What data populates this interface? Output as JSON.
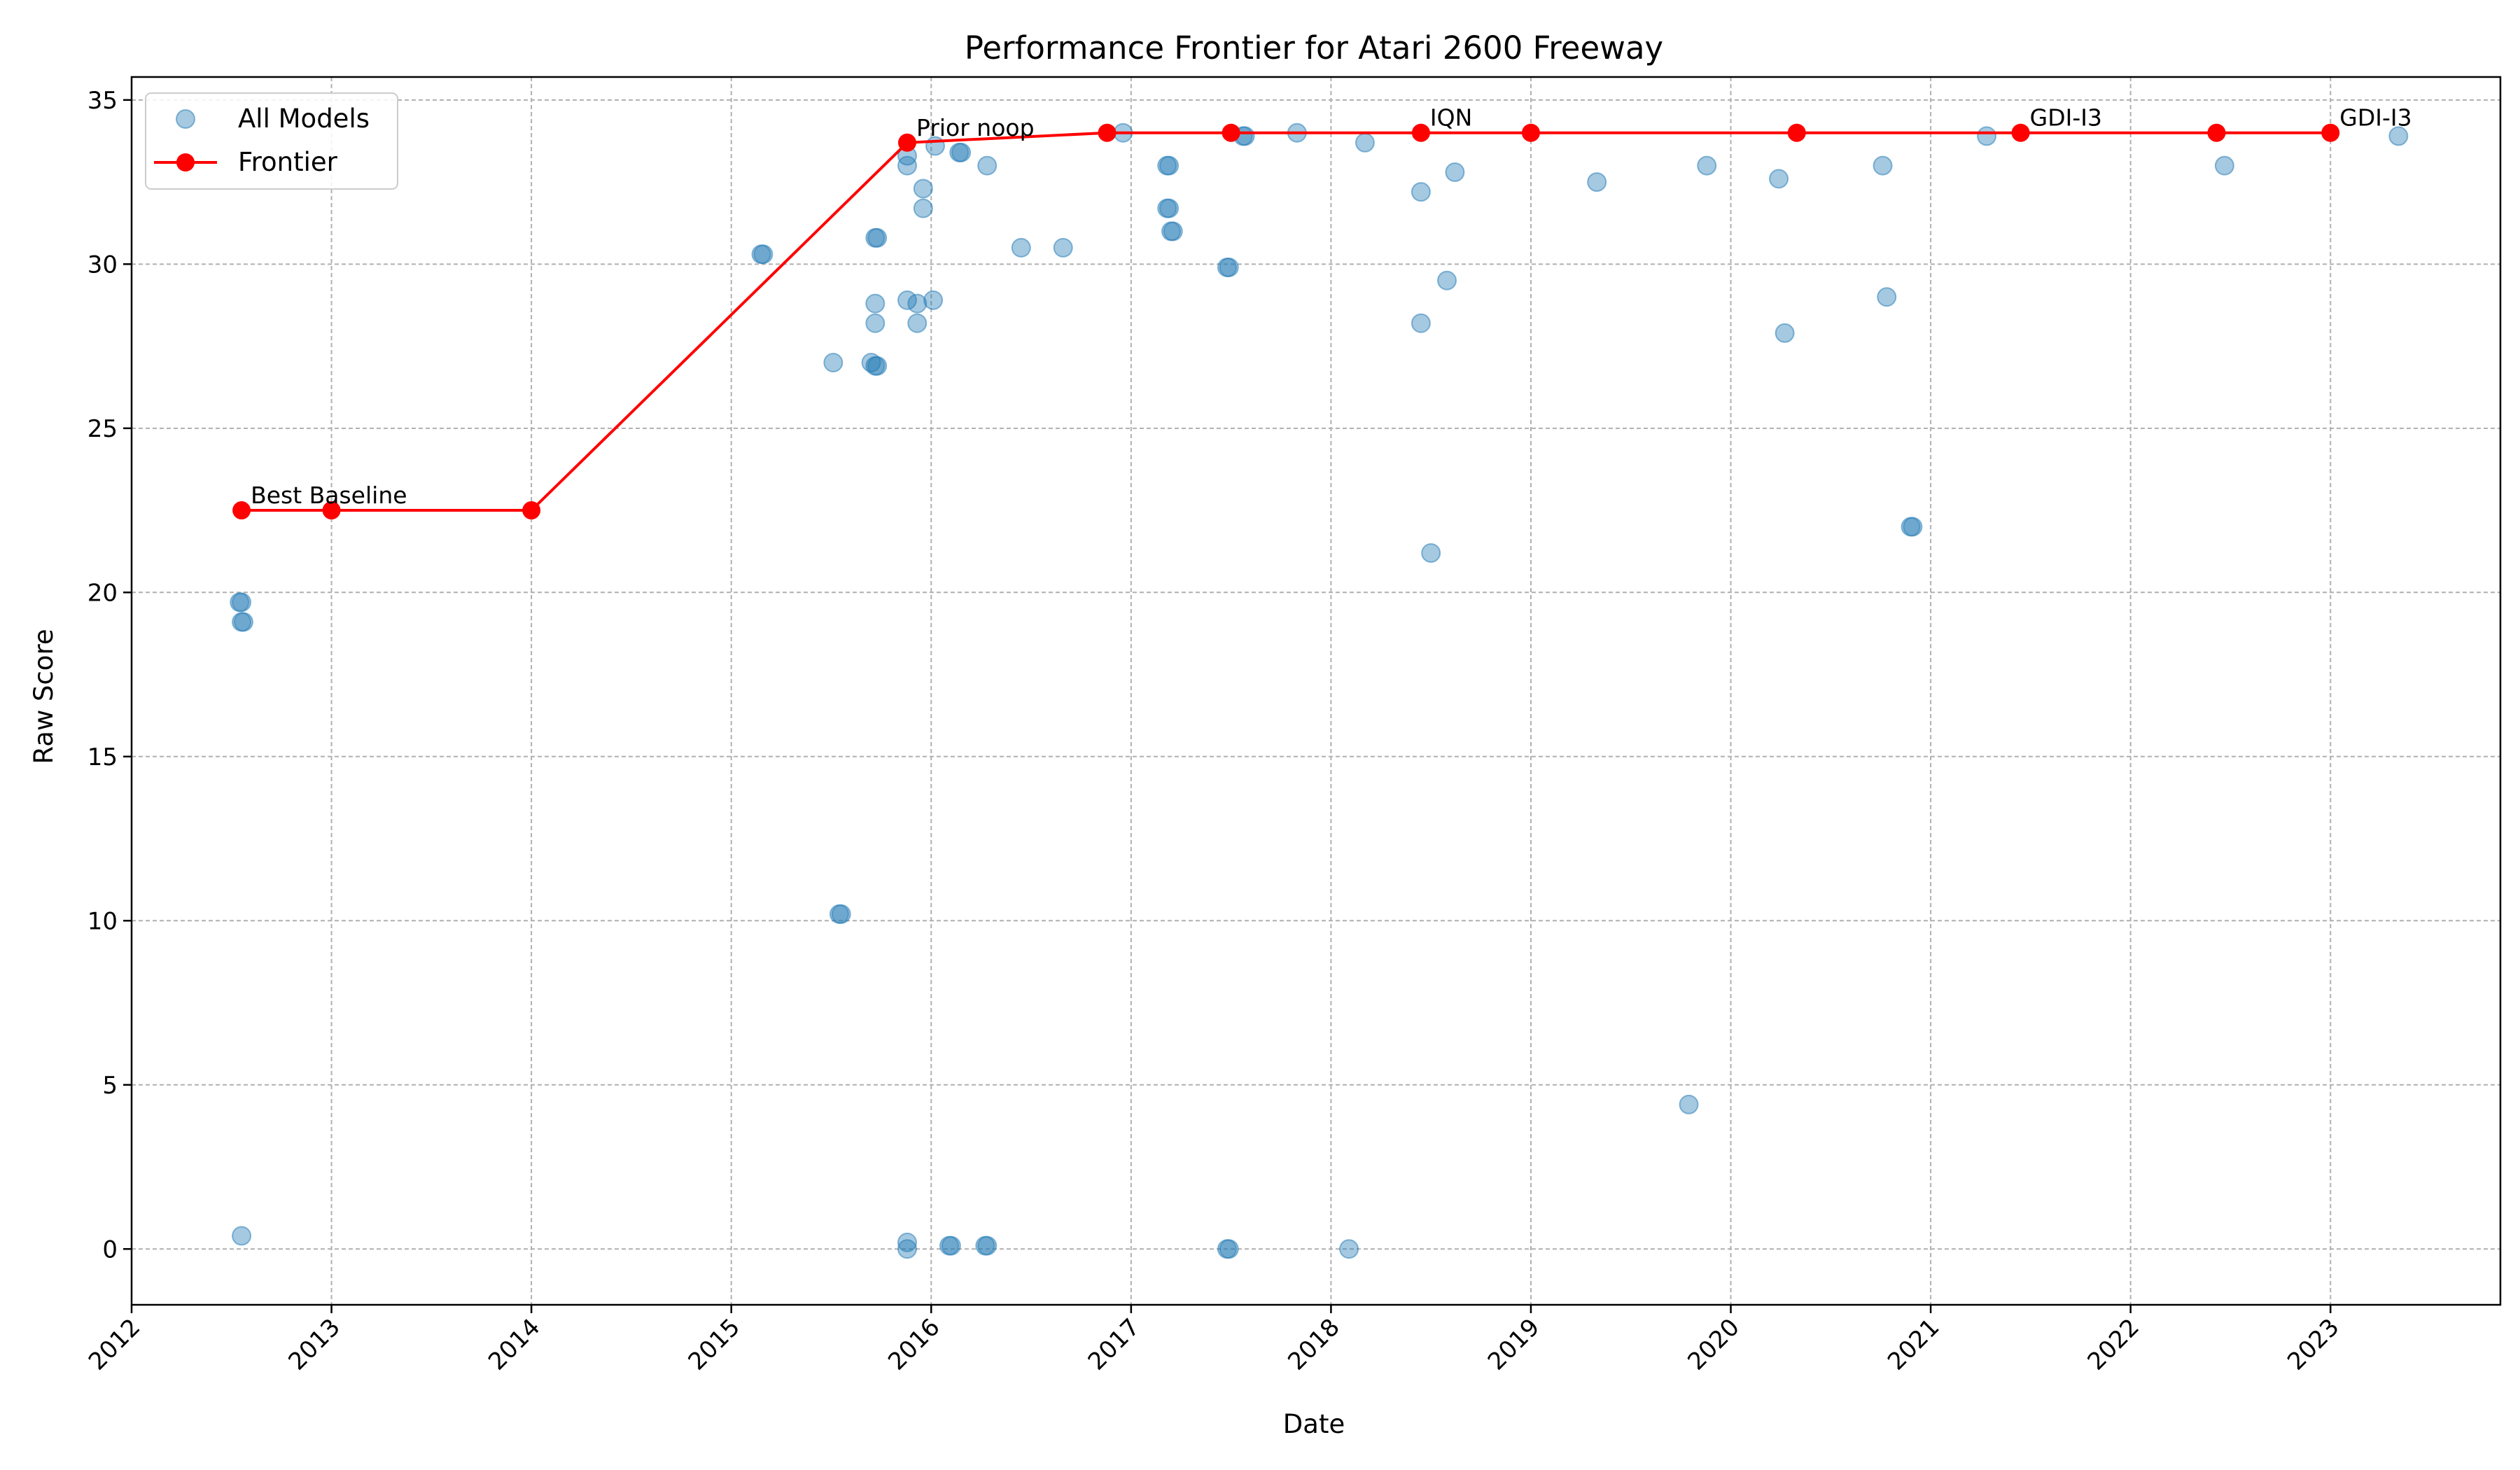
{
  "chart_data": {
    "type": "scatter",
    "title": "Performance Frontier for Atari 2600 Freeway",
    "xlabel": "Date",
    "ylabel": "Raw Score",
    "xlim": [
      2012.0,
      2023.85
    ],
    "ylim": [
      -1.7,
      35.7
    ],
    "x_ticks": [
      2012,
      2013,
      2014,
      2015,
      2016,
      2017,
      2018,
      2019,
      2020,
      2021,
      2022,
      2023
    ],
    "x_tick_labels": [
      "2012",
      "2013",
      "2014",
      "2015",
      "2016",
      "2017",
      "2018",
      "2019",
      "2020",
      "2021",
      "2022",
      "2023"
    ],
    "y_ticks": [
      0,
      5,
      10,
      15,
      20,
      25,
      30,
      35
    ],
    "y_tick_labels": [
      "0",
      "5",
      "10",
      "15",
      "20",
      "25",
      "30",
      "35"
    ],
    "grid": true,
    "legend_position": "top-left",
    "colors": {
      "scatter": "#1f77b4",
      "frontier": "#ff0000",
      "grid": "#b0b0b0"
    },
    "series": [
      {
        "name": "All Models",
        "kind": "scatter",
        "points": [
          [
            2012.54,
            19.7
          ],
          [
            2012.55,
            19.7
          ],
          [
            2012.55,
            19.1
          ],
          [
            2012.56,
            19.1
          ],
          [
            2012.55,
            0.4
          ],
          [
            2015.15,
            30.3
          ],
          [
            2015.16,
            30.3
          ],
          [
            2015.51,
            27.0
          ],
          [
            2015.54,
            10.2
          ],
          [
            2015.55,
            10.2
          ],
          [
            2015.7,
            27.0
          ],
          [
            2015.72,
            26.9
          ],
          [
            2015.73,
            26.9
          ],
          [
            2015.72,
            30.8
          ],
          [
            2015.73,
            30.8
          ],
          [
            2015.72,
            28.8
          ],
          [
            2015.72,
            28.2
          ],
          [
            2015.88,
            33.3
          ],
          [
            2015.88,
            33.0
          ],
          [
            2015.88,
            28.9
          ],
          [
            2015.88,
            0.2
          ],
          [
            2015.88,
            0.0
          ],
          [
            2015.93,
            28.8
          ],
          [
            2015.93,
            28.2
          ],
          [
            2015.96,
            32.3
          ],
          [
            2015.96,
            31.7
          ],
          [
            2016.01,
            28.9
          ],
          [
            2016.02,
            33.6
          ],
          [
            2016.09,
            0.1
          ],
          [
            2016.1,
            0.1
          ],
          [
            2016.14,
            33.4
          ],
          [
            2016.15,
            33.4
          ],
          [
            2016.27,
            0.1
          ],
          [
            2016.28,
            0.1
          ],
          [
            2016.28,
            33.0
          ],
          [
            2016.45,
            30.5
          ],
          [
            2016.66,
            30.5
          ],
          [
            2016.96,
            34.0
          ],
          [
            2017.18,
            31.7
          ],
          [
            2017.19,
            31.7
          ],
          [
            2017.18,
            33.0
          ],
          [
            2017.19,
            33.0
          ],
          [
            2017.2,
            31.0
          ],
          [
            2017.21,
            31.0
          ],
          [
            2017.48,
            29.9
          ],
          [
            2017.49,
            29.9
          ],
          [
            2017.48,
            0.0
          ],
          [
            2017.49,
            0.0
          ],
          [
            2017.56,
            33.9
          ],
          [
            2017.57,
            33.9
          ],
          [
            2017.83,
            34.0
          ],
          [
            2018.09,
            0.0
          ],
          [
            2018.17,
            33.7
          ],
          [
            2018.45,
            32.2
          ],
          [
            2018.45,
            28.2
          ],
          [
            2018.5,
            21.2
          ],
          [
            2018.58,
            29.5
          ],
          [
            2018.62,
            32.8
          ],
          [
            2019.33,
            32.5
          ],
          [
            2019.79,
            4.4
          ],
          [
            2019.88,
            33.0
          ],
          [
            2020.24,
            32.6
          ],
          [
            2020.27,
            27.9
          ],
          [
            2020.76,
            33.0
          ],
          [
            2020.78,
            29.0
          ],
          [
            2020.9,
            22.0
          ],
          [
            2020.91,
            22.0
          ],
          [
            2021.28,
            33.9
          ],
          [
            2022.47,
            33.0
          ],
          [
            2023.34,
            33.9
          ]
        ]
      },
      {
        "name": "Frontier",
        "kind": "line",
        "points": [
          [
            2012.55,
            22.5
          ],
          [
            2013.0,
            22.5
          ],
          [
            2014.0,
            22.5
          ],
          [
            2015.88,
            33.7
          ],
          [
            2016.88,
            34.0
          ],
          [
            2017.5,
            34.0
          ],
          [
            2018.45,
            34.0
          ],
          [
            2019.0,
            34.0
          ],
          [
            2020.33,
            34.0
          ],
          [
            2021.45,
            34.0
          ],
          [
            2022.43,
            34.0
          ],
          [
            2023.0,
            34.0
          ]
        ]
      }
    ],
    "annotations": [
      {
        "text": "Best Baseline",
        "x": 2012.55,
        "y": 22.5
      },
      {
        "text": "Prior noop",
        "x": 2015.88,
        "y": 33.7
      },
      {
        "text": "IQN",
        "x": 2018.45,
        "y": 34.0
      },
      {
        "text": "GDI-I3",
        "x": 2021.45,
        "y": 34.0
      },
      {
        "text": "GDI-I3",
        "x": 2023.0,
        "y": 34.0
      }
    ]
  }
}
